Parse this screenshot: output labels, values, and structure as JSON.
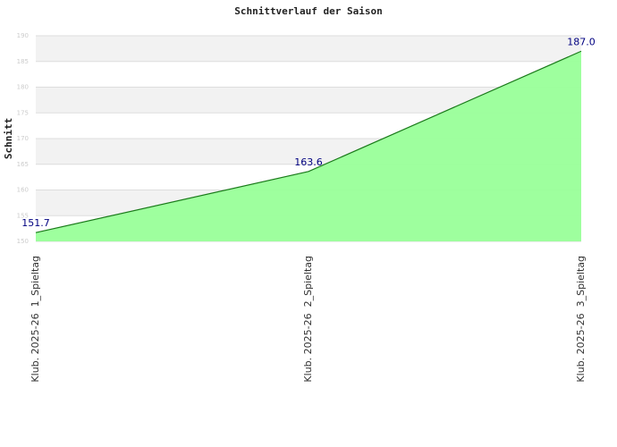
{
  "chart_data": {
    "type": "area",
    "title": "Schnittverlauf der Saison",
    "y_label": "Schnitt",
    "categories": [
      "Klub. 2025-26  1_Spieltag",
      "Klub. 2025-26  2_Spieltag",
      "Klub. 2025-26  3_Spieltag"
    ],
    "values": [
      151.7,
      163.6,
      187.0
    ],
    "value_labels": [
      "151.7",
      "163.6",
      "187.0"
    ],
    "color": "#99ff99",
    "line_color": "#1a7a1a",
    "label_color": "#000080",
    "ylim": [
      150,
      190
    ],
    "yticks": [
      150,
      155,
      160,
      165,
      170,
      175,
      180,
      185,
      190
    ],
    "grid": true
  }
}
